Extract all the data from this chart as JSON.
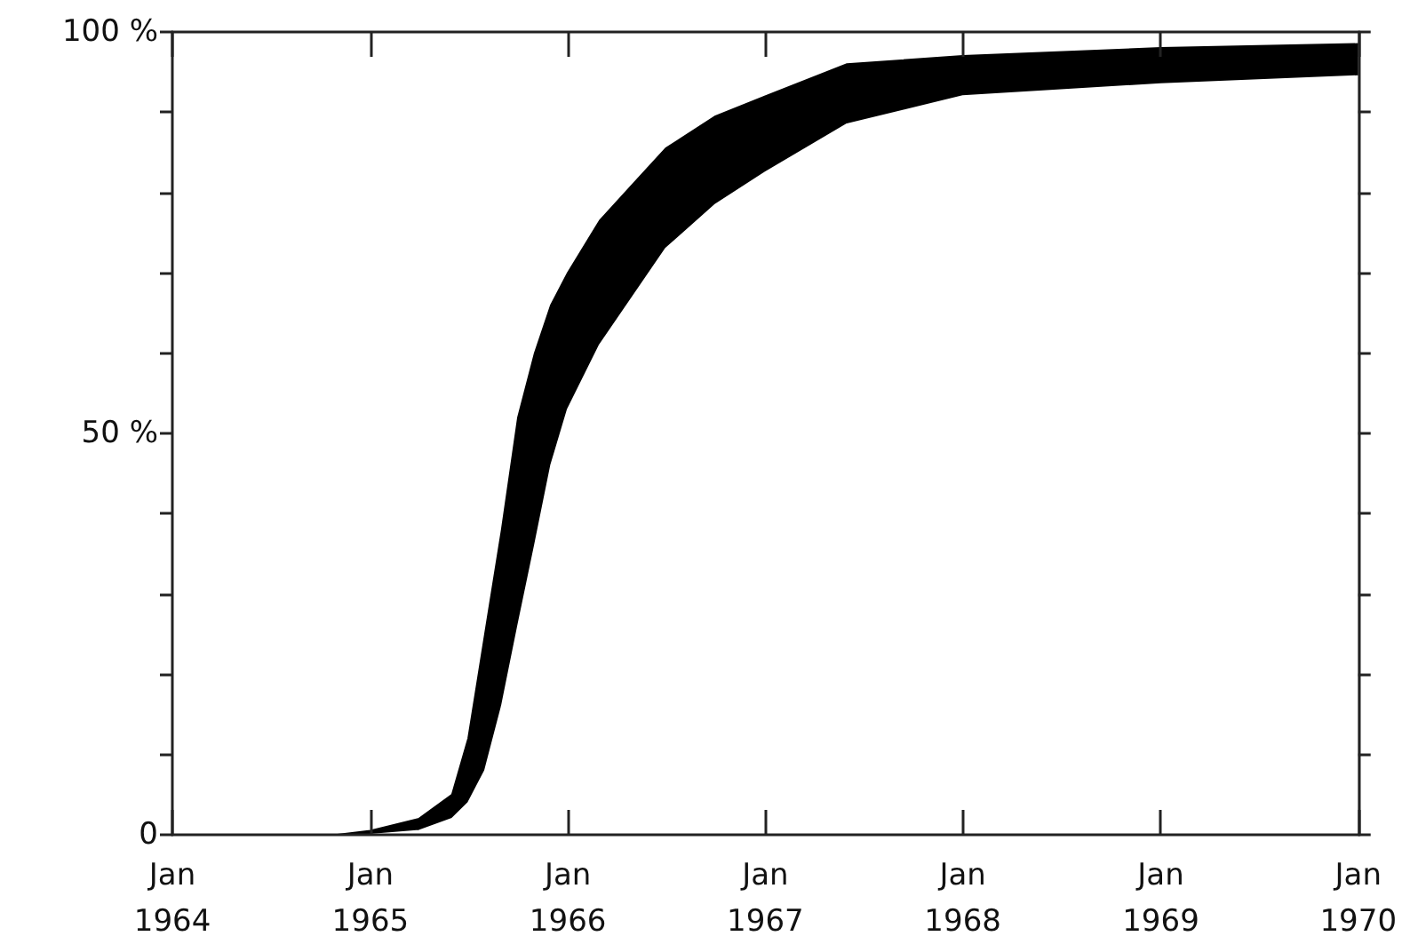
{
  "chart_data": {
    "type": "area",
    "x": [
      "1964-11",
      "1965-01",
      "1965-04",
      "1965-06",
      "1965-07",
      "1965-08",
      "1965-09",
      "1965-10",
      "1965-11",
      "1965-12",
      "1966-01",
      "1966-03",
      "1966-05",
      "1966-07",
      "1966-10",
      "1967-01",
      "1967-06",
      "1968-01",
      "1969-01",
      "1970-01"
    ],
    "series": [
      {
        "color": "#000000",
        "values": [
          0,
          0.5,
          2,
          5,
          12,
          25,
          38,
          52,
          60,
          66,
          70,
          76.5,
          81,
          85.5,
          89.5,
          92,
          96,
          97,
          98,
          98.5
        ]
      },
      {
        "color": "#ffffff",
        "values": [
          0,
          0,
          0.5,
          2,
          4,
          8,
          16,
          26,
          36,
          46,
          53,
          61,
          67,
          73,
          78.5,
          82.5,
          88.5,
          92,
          93.5,
          94.5
        ]
      }
    ],
    "xlim": [
      "1964-01",
      "1970-01"
    ],
    "xticks": [
      {
        "value": "1964-01",
        "label": "Jan 1964"
      },
      {
        "value": "1965-01",
        "label": "Jan 1965"
      },
      {
        "value": "1966-01",
        "label": "Jan 1966"
      },
      {
        "value": "1967-01",
        "label": "Jan 1967"
      },
      {
        "value": "1968-01",
        "label": "Jan 1968"
      },
      {
        "value": "1969-01",
        "label": "Jan 1969"
      },
      {
        "value": "1970-01",
        "label": "Jan 1970"
      }
    ],
    "ylim": [
      0,
      100
    ],
    "yticks": [
      0,
      {
        "value": 10,
        "label": null
      },
      {
        "value": 20,
        "label": null
      },
      {
        "value": 30,
        "label": null
      },
      {
        "value": 40,
        "label": null
      },
      {
        "value": 50,
        "label": "50 %"
      },
      {
        "value": 60,
        "label": null
      },
      {
        "value": 70,
        "label": null
      },
      {
        "value": 80,
        "label": null
      },
      {
        "value": 90,
        "label": null
      },
      {
        "value": 100,
        "label": "100 %"
      }
    ],
    "grid": false
  }
}
